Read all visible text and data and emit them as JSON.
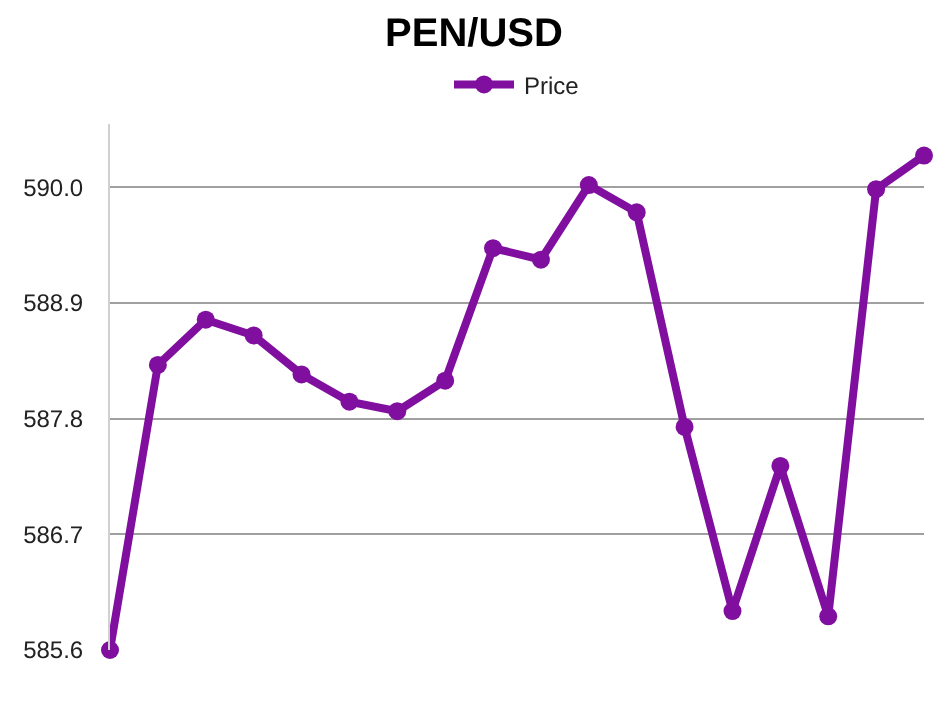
{
  "chart_data": {
    "type": "line",
    "title": "PEN/USD",
    "categories": [
      null,
      null,
      null,
      null,
      null,
      null,
      null,
      null,
      null,
      null,
      null,
      null,
      null,
      null,
      null,
      null,
      null,
      null
    ],
    "series": [
      {
        "name": "Price",
        "color": "#800f9f",
        "values": [
          585.6,
          588.31,
          588.74,
          588.59,
          588.22,
          587.96,
          587.87,
          588.16,
          589.42,
          589.31,
          590.02,
          589.76,
          587.72,
          585.97,
          587.35,
          585.92,
          589.98,
          590.3
        ]
      }
    ],
    "ylim": [
      585.6,
      590.6
    ],
    "yticks": [
      {
        "value": 585.6,
        "label": "585.6"
      },
      {
        "value": 586.7,
        "label": "586.7"
      },
      {
        "value": 587.8,
        "label": "587.8"
      },
      {
        "value": 588.9,
        "label": "588.9"
      },
      {
        "value": 590.0,
        "label": "590.0"
      }
    ],
    "grid": "y",
    "legend": "top",
    "marker": "circle",
    "line_style": "solid",
    "tick_labels": "y"
  }
}
